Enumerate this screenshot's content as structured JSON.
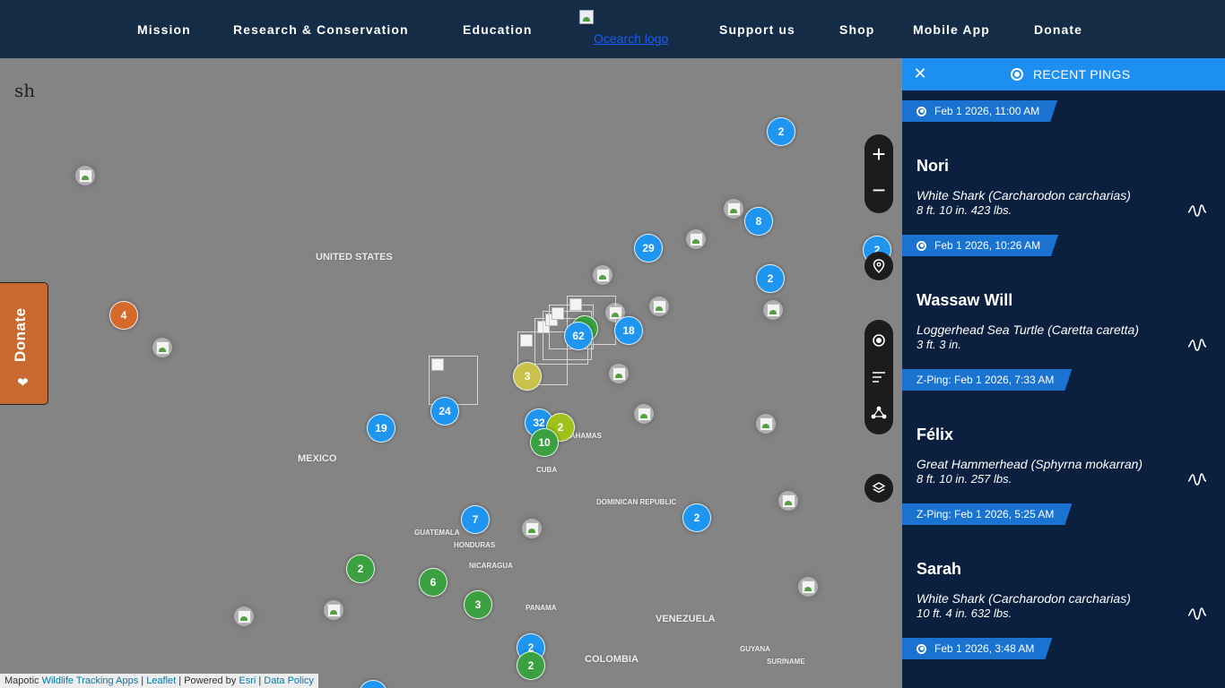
{
  "nav": {
    "items": [
      "Mission",
      "Research & Conservation",
      "Education",
      "Support us",
      "Shop",
      "Mobile App",
      "Donate"
    ],
    "logo_alt": "Ocearch logo"
  },
  "map": {
    "corner_text": "sha",
    "countries": [
      "UNITED STATES",
      "MEXICO",
      "CUBA",
      "BAHAMAS",
      "DOMINICAN REPUBLIC",
      "GUATEMALA",
      "HONDURAS",
      "NICARAGUA",
      "PANAMA",
      "VENEZUELA",
      "COLOMBIA",
      "GUYANA",
      "SURINAME"
    ],
    "clusters": [
      "2",
      "8",
      "29",
      "2",
      "2",
      "4",
      "62",
      "18",
      "3",
      "24",
      "19",
      "32",
      "2",
      "10",
      "7",
      "2",
      "2",
      "6",
      "3",
      "2",
      "2"
    ],
    "controls": {
      "zoom_in": "+",
      "zoom_out": "−"
    },
    "attribution": {
      "prefix": "Mapotic",
      "link1": "Wildlife Tracking Apps",
      "sep1": "|",
      "link2": "Leaflet",
      "sep2": "|",
      "powered": "Powered by",
      "link3": "Esri",
      "sep3": "|",
      "link4": "Data Policy"
    }
  },
  "donate_tab": {
    "label": "Donate"
  },
  "panel": {
    "title": "RECENT PINGS",
    "close": "✕",
    "pings": [
      {
        "time": "Feb 1 2026, 11:00 AM"
      },
      {
        "name": "Nori",
        "species": "White Shark (Carcharodon carcharias)",
        "size": "8 ft. 10 in. 423 lbs.",
        "time": "Feb 1 2026, 10:26 AM"
      },
      {
        "name": "Wassaw Will",
        "species": "Loggerhead Sea Turtle (Caretta caretta)",
        "size": "3 ft. 3 in.",
        "time": "Z-Ping: Feb 1 2026, 7:33 AM"
      },
      {
        "name": "Félix",
        "species": "Great Hammerhead (Sphyrna mokarran)",
        "size": "8 ft. 10 in. 257 lbs.",
        "time": "Z-Ping: Feb 1 2026, 5:25 AM"
      },
      {
        "name": "Sarah",
        "species": "White Shark (Carcharodon carcharias)",
        "size": "10 ft. 4 in. 632 lbs.",
        "time": "Feb 1 2026, 3:48 AM"
      }
    ]
  },
  "colors": {
    "nav_bg": "#142c45",
    "panel_bg": "#0b1f3f",
    "panel_header": "#1c8ff0",
    "tag_blue": "#1a73d1",
    "cluster_blue": "#1e96f0",
    "cluster_green": "#3aa040",
    "donate_orange": "#c8692f"
  }
}
